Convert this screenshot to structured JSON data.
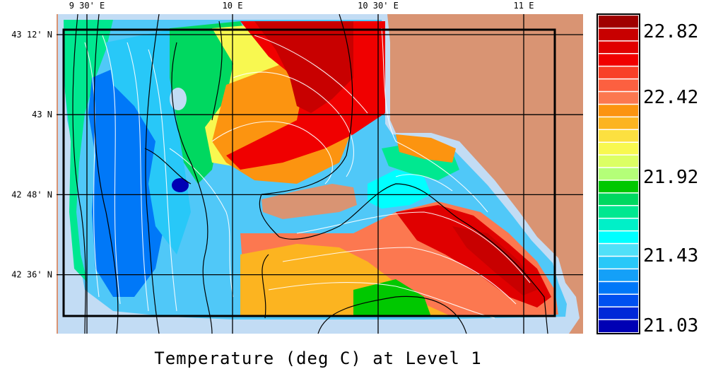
{
  "caption": "Temperature (deg C) at Level 1",
  "lon_ticks": [
    {
      "value": 9.5,
      "label": "9 30' E"
    },
    {
      "value": 10.0,
      "label": "10 E"
    },
    {
      "value": 10.5,
      "label": "10 30' E"
    },
    {
      "value": 11.0,
      "label": "11 E"
    }
  ],
  "lat_ticks": [
    {
      "value": 43.2,
      "label": "43 12' N"
    },
    {
      "value": 43.0,
      "label": "43 N"
    },
    {
      "value": 42.8,
      "label": "42 48' N"
    },
    {
      "value": 42.6,
      "label": "42 36' N"
    }
  ],
  "colorbar": {
    "labels": [
      "22.82",
      "22.42",
      "21.92",
      "21.43",
      "21.03"
    ],
    "min": 21.03,
    "max": 22.82,
    "colors": [
      "#0000b4",
      "#0028d8",
      "#0050f0",
      "#0078f8",
      "#14a0f8",
      "#28c8f8",
      "#50e0f8",
      "#00ffff",
      "#00f0c8",
      "#00e890",
      "#00d860",
      "#00c800",
      "#b4ff78",
      "#dcff64",
      "#f8f850",
      "#fce040",
      "#fcb420",
      "#fc9410",
      "#fc7850",
      "#fc6040",
      "#f84028",
      "#f00000",
      "#e00000",
      "#c80000",
      "#a00000"
    ]
  },
  "land_color": "#d99473",
  "shallow_color": "#c2dcf4"
}
